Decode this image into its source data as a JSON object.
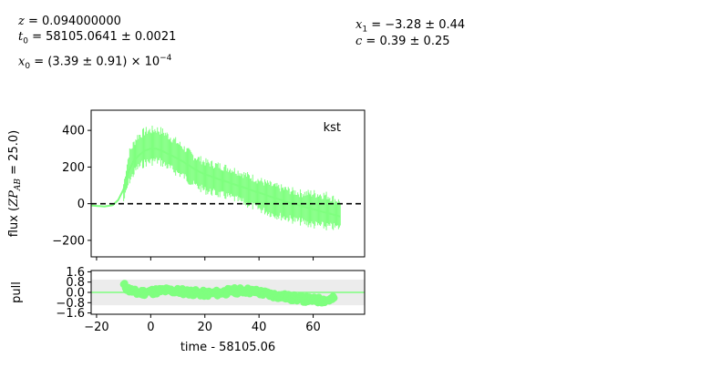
{
  "params": {
    "z": "0.094000000",
    "t0": "58105.0641 ± 0.0021",
    "x0_mant": "(3.39 ± 0.91) × 10",
    "x0_exp": "−4",
    "x1": "−3.28 ± 0.44",
    "c": "0.39 ± 0.25"
  },
  "chart_data": [
    {
      "type": "line",
      "panel": "flux",
      "band": "kst",
      "ylabel_main": "flux (",
      "ylabel_var": "ZP",
      "ylabel_sub": "AB",
      "ylabel_tail": " = 25.0)",
      "xlim": [
        -22,
        79
      ],
      "ylim": [
        -290,
        510
      ],
      "yticks": [
        -200,
        0,
        200,
        400
      ],
      "xticks": [
        -20,
        0,
        20,
        40,
        60
      ],
      "zero_line": true,
      "data_color": "#7fff7f",
      "data_envelope": {
        "x": [
          -10,
          -8,
          -5,
          -2,
          0,
          2,
          4,
          8,
          12,
          16,
          20,
          25,
          30,
          35,
          40,
          45,
          50,
          55,
          60,
          65,
          70
        ],
        "center": [
          60,
          200,
          280,
          310,
          315,
          320,
          310,
          270,
          230,
          180,
          150,
          130,
          110,
          80,
          50,
          20,
          0,
          -20,
          -30,
          -40,
          -60
        ],
        "half_width": [
          60,
          100,
          110,
          110,
          110,
          110,
          110,
          110,
          100,
          100,
          100,
          100,
          100,
          100,
          100,
          100,
          100,
          100,
          110,
          110,
          90
        ]
      },
      "model": {
        "x": [
          -22,
          -17,
          -14,
          -12,
          -10,
          -8,
          -6,
          -4,
          -2,
          0,
          2,
          4,
          8,
          12,
          16,
          20,
          30,
          40,
          50,
          60,
          70
        ],
        "y": [
          -10,
          -15,
          -8,
          20,
          80,
          180,
          240,
          270,
          290,
          300,
          300,
          290,
          260,
          230,
          190,
          160,
          110,
          60,
          10,
          -30,
          -70
        ]
      }
    },
    {
      "type": "scatter",
      "panel": "pull",
      "ylabel": "pull",
      "xlabel": "time - 58105.06",
      "xlim": [
        -22,
        79
      ],
      "ylim": [
        -1.7,
        1.7
      ],
      "yticks": [
        -1.6,
        -0.8,
        0.0,
        0.8,
        1.6
      ],
      "ytick_labels": [
        "−1.6",
        "−0.8",
        "0.0",
        "0.8",
        "1.6"
      ],
      "xticks": [
        -20,
        0,
        20,
        40,
        60
      ],
      "xtick_labels": [
        "−20",
        "0",
        "20",
        "40",
        "60"
      ],
      "band_range": [
        -1,
        1
      ],
      "points": {
        "x": [
          -10,
          -8,
          -5,
          0,
          5,
          10,
          15,
          20,
          25,
          30,
          35,
          40,
          45,
          50,
          55,
          60,
          65,
          68
        ],
        "y": [
          0.55,
          0.2,
          -0.05,
          0.05,
          0.15,
          0.1,
          0.0,
          -0.1,
          -0.05,
          0.1,
          0.15,
          0.0,
          -0.2,
          -0.35,
          -0.5,
          -0.6,
          -0.6,
          -0.5
        ]
      }
    }
  ]
}
